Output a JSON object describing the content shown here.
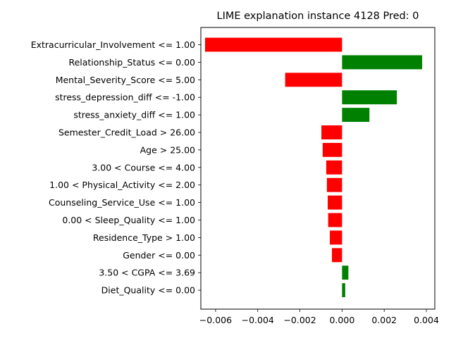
{
  "chart_data": {
    "type": "bar",
    "orientation": "horizontal",
    "title": "LIME explanation instance 4128 Pred: 0",
    "xlabel": "",
    "ylabel": "",
    "xlim": [
      -0.0067,
      0.0044
    ],
    "xticks": [
      -0.006,
      -0.004,
      -0.002,
      0.0,
      0.002,
      0.004
    ],
    "xtick_labels": [
      "−0.006",
      "−0.004",
      "−0.002",
      "0.000",
      "0.002",
      "0.004"
    ],
    "grid": false,
    "colors": {
      "positive": "#008000",
      "negative": "#ff0000"
    },
    "categories": [
      "Extracurricular_Involvement <= 1.00",
      "Relationship_Status <= 0.00",
      "Mental_Severity_Score <= 5.00",
      "stress_depression_diff <= -1.00",
      "stress_anxiety_diff <= 1.00",
      "Semester_Credit_Load > 26.00",
      "Age > 25.00",
      "3.00 < Course <= 4.00",
      "1.00 < Physical_Activity <= 2.00",
      "Counseling_Service_Use <= 1.00",
      "0.00 < Sleep_Quality <= 1.00",
      "Residence_Type > 1.00",
      "Gender <= 0.00",
      "3.50 < CGPA <= 3.69",
      "Diet_Quality <= 0.00"
    ],
    "values": [
      -0.0065,
      0.0038,
      -0.0027,
      0.0026,
      0.0013,
      -0.00098,
      -0.00092,
      -0.00075,
      -0.00072,
      -0.00068,
      -0.00066,
      -0.00058,
      -0.00048,
      0.0003,
      0.00015
    ]
  }
}
